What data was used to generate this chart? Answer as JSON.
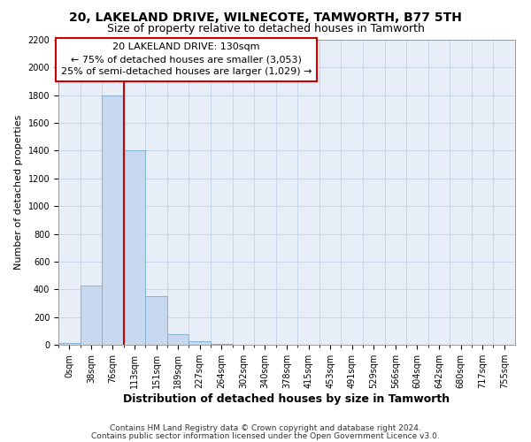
{
  "title": "20, LAKELAND DRIVE, WILNECOTE, TAMWORTH, B77 5TH",
  "subtitle": "Size of property relative to detached houses in Tamworth",
  "xlabel": "Distribution of detached houses by size in Tamworth",
  "ylabel": "Number of detached properties",
  "bar_labels": [
    "0sqm",
    "38sqm",
    "76sqm",
    "113sqm",
    "151sqm",
    "189sqm",
    "227sqm",
    "264sqm",
    "302sqm",
    "340sqm",
    "378sqm",
    "415sqm",
    "453sqm",
    "491sqm",
    "529sqm",
    "566sqm",
    "604sqm",
    "642sqm",
    "680sqm",
    "717sqm",
    "755sqm"
  ],
  "bar_values": [
    15,
    430,
    1800,
    1400,
    350,
    75,
    25,
    5,
    0,
    0,
    0,
    0,
    0,
    0,
    0,
    0,
    0,
    0,
    0,
    0,
    0
  ],
  "bar_color": "#c8d9ef",
  "bar_edgecolor": "#7aabce",
  "vline_color": "#cc0000",
  "annotation_text": "20 LAKELAND DRIVE: 130sqm\n← 75% of detached houses are smaller (3,053)\n25% of semi-detached houses are larger (1,029) →",
  "annotation_box_facecolor": "#ffffff",
  "annotation_box_edgecolor": "#cc0000",
  "ylim": [
    0,
    2200
  ],
  "yticks": [
    0,
    200,
    400,
    600,
    800,
    1000,
    1200,
    1400,
    1600,
    1800,
    2000,
    2200
  ],
  "grid_color": "#c8d4e8",
  "background_color": "#e8eef8",
  "footnote1": "Contains HM Land Registry data © Crown copyright and database right 2024.",
  "footnote2": "Contains public sector information licensed under the Open Government Licence v3.0.",
  "title_fontsize": 10,
  "subtitle_fontsize": 9,
  "xlabel_fontsize": 9,
  "ylabel_fontsize": 8,
  "tick_fontsize": 7,
  "annot_fontsize": 8,
  "footnote_fontsize": 6.5,
  "vline_bar_index": 2.5
}
